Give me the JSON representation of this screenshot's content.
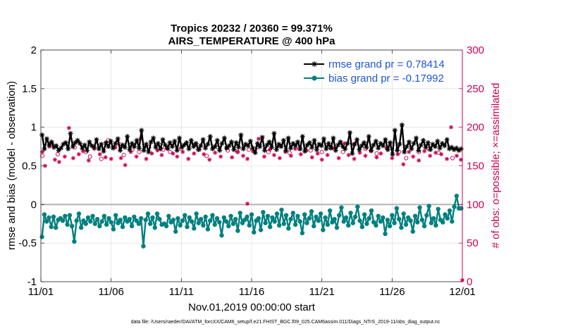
{
  "chart_data": {
    "type": "line",
    "title": "Tropics 20232 / 20360 = 99.371%",
    "subtitle": "AIRS_TEMPERATURE @ 400 hPa",
    "xlabel": "Nov.01,2019 00:00:00 start",
    "ylabel_left": "rmse and bias (model - observation)",
    "ylabel_right": "# of obs: o=possible; ×=assimilated",
    "x_ticks": [
      "11/01",
      "11/06",
      "11/11",
      "11/16",
      "11/21",
      "11/26",
      "12/01"
    ],
    "xlim": [
      0,
      30
    ],
    "ylim_left": [
      -1,
      2
    ],
    "y_ticks_left": [
      "-1",
      "-0.5",
      "0",
      "0.5",
      "1",
      "1.5",
      "2"
    ],
    "ylim_right": [
      0,
      300
    ],
    "y_ticks_right": [
      "0",
      "50",
      "100",
      "150",
      "200",
      "250",
      "300"
    ],
    "legend": [
      "rmse grand pr = 0.78414",
      "bias grand pr = -0.17992"
    ],
    "footnote": "data file: /Users/raeder/DAI/ATM_forcXX/CAM6_setup/f.e21.FHIST_BGC.f09_025.CAM6assim.011/Diags_NTrS_2019-11/obs_diag_output.nc",
    "series": [
      {
        "name": "rmse",
        "color": "#000000",
        "values": [
          0.9,
          0.72,
          0.85,
          0.77,
          0.81,
          0.74,
          0.76,
          0.7,
          0.73,
          0.78,
          0.8,
          0.72,
          0.92,
          0.75,
          0.8,
          0.83,
          0.79,
          0.73,
          0.77,
          0.7,
          0.81,
          0.76,
          0.74,
          0.84,
          0.72,
          0.78,
          0.69,
          0.8,
          0.75,
          0.82,
          0.73,
          0.79,
          0.85,
          0.7,
          0.77,
          0.74,
          0.88,
          0.71,
          0.79,
          0.75,
          0.83,
          0.73,
          0.96,
          0.7,
          0.78,
          0.68,
          0.81,
          0.86,
          0.74,
          0.79,
          0.72,
          0.84,
          0.77,
          0.73,
          0.8,
          0.75,
          0.82,
          0.7,
          0.86,
          0.74,
          0.77,
          0.8,
          0.72,
          0.83,
          0.75,
          0.79,
          0.71,
          0.76,
          0.84,
          0.73,
          0.78,
          0.88,
          0.72,
          0.75,
          0.83,
          0.7,
          0.79,
          0.86,
          0.73,
          0.76,
          0.81,
          0.71,
          0.8,
          0.74,
          0.9,
          0.72,
          0.78,
          0.76,
          0.82,
          0.73,
          0.67,
          0.79,
          0.75,
          0.87,
          0.7,
          0.77,
          0.81,
          0.74,
          0.92,
          0.71,
          0.78,
          0.75,
          0.83,
          0.7,
          0.86,
          0.73,
          0.79,
          0.76,
          0.81,
          0.72,
          0.88,
          0.69,
          0.77,
          0.8,
          0.74,
          0.83,
          0.71,
          0.78,
          0.76,
          0.85,
          0.72,
          0.79,
          0.73,
          0.86,
          0.7,
          0.77,
          0.81,
          0.75,
          0.72,
          0.79,
          0.93,
          0.66,
          0.78,
          0.84,
          0.71,
          0.76,
          0.8,
          0.74,
          0.88,
          0.7,
          0.77,
          0.82,
          0.73,
          0.79,
          0.76,
          0.84,
          0.71,
          0.8,
          0.65,
          0.96,
          0.7,
          0.78,
          1.03,
          0.68,
          0.75,
          0.81,
          0.72,
          0.79,
          0.86,
          0.7,
          0.77,
          0.83,
          0.74,
          0.8,
          0.71,
          0.78,
          0.75,
          0.82,
          0.73,
          0.79,
          0.76,
          0.84,
          0.72,
          0.74,
          0.71,
          0.73,
          0.7,
          0.72
        ]
      },
      {
        "name": "bias",
        "color": "#00807f",
        "values": [
          -0.42,
          -0.13,
          -0.22,
          -0.17,
          -0.29,
          -0.16,
          -0.3,
          -0.2,
          -0.18,
          -0.21,
          -0.15,
          -0.26,
          -0.14,
          -0.28,
          -0.48,
          -0.21,
          -0.12,
          -0.3,
          -0.21,
          -0.25,
          -0.17,
          -0.22,
          -0.15,
          -0.25,
          -0.19,
          -0.28,
          -0.22,
          -0.15,
          -0.26,
          -0.18,
          -0.23,
          -0.32,
          -0.14,
          -0.24,
          -0.2,
          -0.29,
          -0.17,
          -0.22,
          -0.19,
          -0.28,
          -0.16,
          -0.21,
          -0.25,
          -0.18,
          -0.54,
          -0.2,
          -0.12,
          -0.25,
          -0.17,
          -0.3,
          -0.12,
          -0.19,
          -0.26,
          -0.25,
          -0.28,
          -0.15,
          -0.23,
          -0.2,
          -0.35,
          -0.18,
          -0.27,
          -0.21,
          -0.14,
          -0.29,
          -0.17,
          -0.22,
          -0.31,
          -0.12,
          -0.24,
          -0.19,
          -0.27,
          -0.16,
          -0.32,
          -0.21,
          -0.14,
          -0.26,
          -0.18,
          -0.23,
          -0.4,
          -0.17,
          -0.22,
          -0.28,
          -0.15,
          -0.25,
          -0.19,
          -0.34,
          -0.11,
          -0.24,
          -0.2,
          -0.16,
          -0.27,
          -0.13,
          -0.36,
          -0.21,
          -0.18,
          -0.33,
          -0.1,
          -0.24,
          -0.15,
          -0.29,
          -0.17,
          -0.22,
          -0.12,
          -0.27,
          -0.07,
          -0.25,
          -0.14,
          -0.31,
          -0.19,
          -0.11,
          -0.26,
          -0.15,
          -0.22,
          -0.37,
          -0.13,
          -0.24,
          -0.18,
          -0.09,
          -0.28,
          -0.16,
          -0.21,
          -0.12,
          -0.33,
          -0.17,
          -0.26,
          -0.08,
          -0.23,
          -0.19,
          -0.3,
          -0.14,
          -0.04,
          -0.22,
          -0.17,
          -0.27,
          -0.11,
          -0.24,
          -0.16,
          -0.03,
          -0.21,
          -0.29,
          -0.13,
          -0.25,
          -0.18,
          -0.08,
          -0.23,
          -0.27,
          -0.15,
          -0.22,
          -0.17,
          -0.38,
          -0.2,
          -0.28,
          -0.14,
          -0.24,
          -0.05,
          -0.19,
          -0.3,
          -0.12,
          -0.26,
          -0.17,
          -0.21,
          -0.35,
          -0.15,
          -0.23,
          -0.04,
          -0.2,
          -0.28,
          -0.14,
          -0.02,
          -0.24,
          -0.18,
          -0.27,
          -0.06,
          -0.2,
          -0.23,
          -0.13,
          -0.18,
          -0.08,
          -0.22,
          -0.03,
          0.11,
          -0.05,
          -0.05
        ]
      }
    ],
    "obs_possible": [
      {
        "x": 0.1,
        "y": 163
      },
      {
        "x": 0.8,
        "y": 178
      },
      {
        "x": 1.2,
        "y": 165
      },
      {
        "x": 2.4,
        "y": 174
      },
      {
        "x": 3.2,
        "y": 168
      },
      {
        "x": 3.5,
        "y": 162
      },
      {
        "x": 4.3,
        "y": 159
      },
      {
        "x": 4.8,
        "y": 183
      },
      {
        "x": 5.6,
        "y": 178
      },
      {
        "x": 5.9,
        "y": 164
      },
      {
        "x": 6.5,
        "y": 171
      },
      {
        "x": 7.0,
        "y": 168
      },
      {
        "x": 7.7,
        "y": 174
      },
      {
        "x": 8.7,
        "y": 171
      },
      {
        "x": 9.2,
        "y": 168
      },
      {
        "x": 10.0,
        "y": 172
      },
      {
        "x": 11.0,
        "y": 178
      },
      {
        "x": 11.8,
        "y": 163
      },
      {
        "x": 12.6,
        "y": 174
      },
      {
        "x": 13.3,
        "y": 170
      },
      {
        "x": 14.0,
        "y": 168
      },
      {
        "x": 14.8,
        "y": 171
      },
      {
        "x": 15.4,
        "y": 174
      },
      {
        "x": 16.2,
        "y": 168
      },
      {
        "x": 17.0,
        "y": 176
      },
      {
        "x": 17.7,
        "y": 167
      },
      {
        "x": 18.4,
        "y": 172
      },
      {
        "x": 19.2,
        "y": 170
      },
      {
        "x": 20.0,
        "y": 168
      },
      {
        "x": 20.6,
        "y": 174
      },
      {
        "x": 21.5,
        "y": 168
      },
      {
        "x": 22.3,
        "y": 178
      },
      {
        "x": 23.1,
        "y": 172
      },
      {
        "x": 23.9,
        "y": 166
      },
      {
        "x": 24.7,
        "y": 178
      },
      {
        "x": 25.5,
        "y": 168
      },
      {
        "x": 26.0,
        "y": 160
      },
      {
        "x": 26.9,
        "y": 168
      },
      {
        "x": 27.6,
        "y": 172
      },
      {
        "x": 28.3,
        "y": 167
      },
      {
        "x": 29.3,
        "y": 160
      }
    ],
    "obs_assimilated": [
      {
        "x": 0.1,
        "y": 168
      },
      {
        "x": 0.3,
        "y": 150
      },
      {
        "x": 0.6,
        "y": 175
      },
      {
        "x": 1.0,
        "y": 158
      },
      {
        "x": 1.3,
        "y": 155
      },
      {
        "x": 1.7,
        "y": 162
      },
      {
        "x": 2.0,
        "y": 199
      },
      {
        "x": 2.3,
        "y": 160
      },
      {
        "x": 2.7,
        "y": 165
      },
      {
        "x": 3.0,
        "y": 169
      },
      {
        "x": 3.4,
        "y": 157
      },
      {
        "x": 3.8,
        "y": 172
      },
      {
        "x": 4.2,
        "y": 165
      },
      {
        "x": 4.6,
        "y": 161
      },
      {
        "x": 5.0,
        "y": 159
      },
      {
        "x": 5.3,
        "y": 174
      },
      {
        "x": 5.7,
        "y": 160
      },
      {
        "x": 6.0,
        "y": 151
      },
      {
        "x": 6.4,
        "y": 168
      },
      {
        "x": 6.8,
        "y": 162
      },
      {
        "x": 7.1,
        "y": 185
      },
      {
        "x": 7.5,
        "y": 159
      },
      {
        "x": 7.9,
        "y": 166
      },
      {
        "x": 8.3,
        "y": 170
      },
      {
        "x": 8.6,
        "y": 164
      },
      {
        "x": 9.0,
        "y": 172
      },
      {
        "x": 9.4,
        "y": 166
      },
      {
        "x": 9.7,
        "y": 162
      },
      {
        "x": 10.1,
        "y": 168
      },
      {
        "x": 10.5,
        "y": 159
      },
      {
        "x": 10.9,
        "y": 166
      },
      {
        "x": 11.3,
        "y": 171
      },
      {
        "x": 11.6,
        "y": 165
      },
      {
        "x": 12.0,
        "y": 158
      },
      {
        "x": 12.4,
        "y": 167
      },
      {
        "x": 12.8,
        "y": 162
      },
      {
        "x": 13.2,
        "y": 173
      },
      {
        "x": 13.6,
        "y": 161
      },
      {
        "x": 14.0,
        "y": 168
      },
      {
        "x": 14.4,
        "y": 163
      },
      {
        "x": 14.7,
        "y": 159
      },
      {
        "x": 15.1,
        "y": 169
      },
      {
        "x": 15.5,
        "y": 185
      },
      {
        "x": 15.9,
        "y": 162
      },
      {
        "x": 16.3,
        "y": 171
      },
      {
        "x": 16.6,
        "y": 164
      },
      {
        "x": 17.0,
        "y": 160
      },
      {
        "x": 17.4,
        "y": 168
      },
      {
        "x": 17.8,
        "y": 163
      },
      {
        "x": 18.1,
        "y": 172
      },
      {
        "x": 18.5,
        "y": 165
      },
      {
        "x": 18.9,
        "y": 170
      },
      {
        "x": 19.3,
        "y": 161
      },
      {
        "x": 19.7,
        "y": 166
      },
      {
        "x": 20.0,
        "y": 158
      },
      {
        "x": 20.4,
        "y": 164
      },
      {
        "x": 20.8,
        "y": 173
      },
      {
        "x": 21.2,
        "y": 160
      },
      {
        "x": 21.6,
        "y": 179
      },
      {
        "x": 21.9,
        "y": 164
      },
      {
        "x": 22.3,
        "y": 159
      },
      {
        "x": 22.7,
        "y": 167
      },
      {
        "x": 23.1,
        "y": 163
      },
      {
        "x": 23.5,
        "y": 169
      },
      {
        "x": 23.9,
        "y": 161
      },
      {
        "x": 24.2,
        "y": 166
      },
      {
        "x": 24.6,
        "y": 173
      },
      {
        "x": 25.0,
        "y": 160
      },
      {
        "x": 25.4,
        "y": 165
      },
      {
        "x": 25.8,
        "y": 152
      },
      {
        "x": 26.2,
        "y": 168
      },
      {
        "x": 26.5,
        "y": 162
      },
      {
        "x": 26.9,
        "y": 157
      },
      {
        "x": 27.3,
        "y": 169
      },
      {
        "x": 27.7,
        "y": 163
      },
      {
        "x": 28.1,
        "y": 167
      },
      {
        "x": 28.5,
        "y": 165
      },
      {
        "x": 28.9,
        "y": 159
      },
      {
        "x": 29.2,
        "y": 200
      },
      {
        "x": 29.6,
        "y": 163
      },
      {
        "x": 29.9,
        "y": 158
      },
      {
        "x": 14.7,
        "y": 101
      },
      {
        "x": 30.0,
        "y": 2
      }
    ]
  }
}
